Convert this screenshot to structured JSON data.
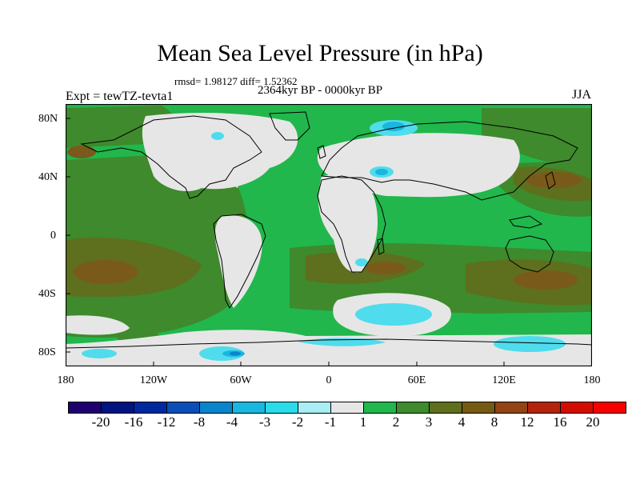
{
  "header": {
    "title": "Mean Sea Level Pressure (in hPa)",
    "stats": "rmsd= 1.98127 diff= 1.52362",
    "period": "2364kyr BP - 0000kyr BP",
    "experiment": "Expt = tewTZ-tevta1",
    "season": "JJA"
  },
  "axes": {
    "lat_labels": [
      "80N",
      "40N",
      "0",
      "40S",
      "80S"
    ],
    "lon_labels": [
      "180",
      "120W",
      "60W",
      "0",
      "60E",
      "120E",
      "180"
    ]
  },
  "colorbar": {
    "labels": [
      "-20",
      "-16",
      "-12",
      "-8",
      "-4",
      "-3",
      "-2",
      "-1",
      "1",
      "2",
      "3",
      "4",
      "8",
      "12",
      "16",
      "20"
    ],
    "colors": [
      "#20006e",
      "#00157f",
      "#0029a0",
      "#0a4fb8",
      "#0a85cc",
      "#19b6e0",
      "#2adcea",
      "#a8eef4",
      "#e6e6e6",
      "#21b74c",
      "#3e8a2c",
      "#5e6f1e",
      "#755a13",
      "#924414",
      "#b4230c",
      "#d40c00",
      "#f80000"
    ]
  },
  "colors": {
    "background_green": "#21b74c",
    "dark_green": "#3e8a2c",
    "olive": "#5e6f1e",
    "brown": "#7a5a1a",
    "light_gray": "#e6e6e6",
    "light_cyan": "#4fdcec",
    "cyan": "#2adcea",
    "blue": "#0a85cc"
  }
}
